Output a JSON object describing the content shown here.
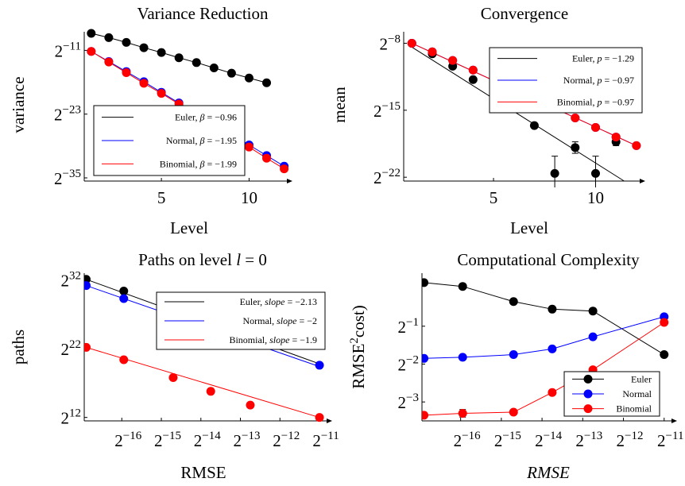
{
  "chart_data": [
    {
      "type": "scatter",
      "title": "Variance Reduction",
      "xlabel": "Level",
      "ylabel": "variance",
      "xlim": [
        0.6,
        12.2
      ],
      "ylim_log2": [
        -35.6,
        -7.5
      ],
      "x_ticks": [
        5,
        10
      ],
      "y_ticks": [
        {
          "exp": -11
        },
        {
          "exp": -23
        },
        {
          "exp": -35
        }
      ],
      "legend_placement": "center-left",
      "series": [
        {
          "name": "Euler, β = −0.96",
          "name_prefix": "Euler, ",
          "sym": "β",
          "name_value": " = −0.96",
          "color": "#000000",
          "x": [
            1,
            2,
            3,
            4,
            5,
            6,
            7,
            8,
            9,
            10,
            11
          ],
          "log2y": [
            -7.8,
            -8.6,
            -9.5,
            -10.5,
            -11.4,
            -12.4,
            -13.3,
            -14.3,
            -15.3,
            -16.2,
            -17.1
          ]
        },
        {
          "name": "Normal, β = −1.95",
          "name_prefix": "Normal, ",
          "sym": "β",
          "name_value": " = −1.95",
          "color": "#0000ff",
          "x": [
            1,
            2,
            3,
            4,
            5,
            6,
            7,
            8,
            9,
            10,
            11,
            12
          ],
          "log2y": [
            -11.2,
            -13.1,
            -15.0,
            -16.9,
            -18.9,
            -20.9,
            -22.8,
            -24.8,
            -26.8,
            -28.8,
            -30.8,
            -32.8
          ]
        },
        {
          "name": "Binomial, β = −1.99",
          "name_prefix": "Binomial, ",
          "sym": "β",
          "name_value": " = −1.99",
          "color": "#ff0000",
          "x": [
            1,
            2,
            3,
            4,
            5,
            6,
            7,
            8,
            9,
            10,
            11,
            12
          ],
          "log2y": [
            -11.2,
            -13.2,
            -15.2,
            -17.2,
            -19.1,
            -21.1,
            -23.2,
            -25.2,
            -27.2,
            -29.2,
            -31.3,
            -33.3
          ]
        }
      ]
    },
    {
      "type": "scatter",
      "title": "Convergence",
      "xlabel": "Level",
      "ylabel": "mean",
      "xlim": [
        0.6,
        12.2
      ],
      "ylim_log2": [
        -22.4,
        -6.8
      ],
      "x_ticks": [
        5,
        10
      ],
      "y_ticks": [
        {
          "exp": -8
        },
        {
          "exp": -15
        },
        {
          "exp": -22
        }
      ],
      "legend_placement": "top-right",
      "series": [
        {
          "name": "Euler, p = −1.29",
          "name_prefix": "Euler, ",
          "sym": "p",
          "name_value": " = −1.29",
          "color": "#000000",
          "x": [
            1,
            2,
            3,
            4,
            5,
            6,
            7,
            8,
            9,
            10,
            11
          ],
          "log2y": [
            -8.0,
            -9.1,
            -10.4,
            -11.8,
            -13.4,
            -14.8,
            -16.6,
            -21.6,
            -18.9,
            -21.6,
            -18.3
          ],
          "errors": [
            null,
            null,
            null,
            null,
            null,
            null,
            null,
            1.8,
            0.6,
            1.8,
            0.4
          ]
        },
        {
          "name": "Normal, p = −0.97",
          "name_prefix": "Normal, ",
          "sym": "p",
          "name_value": " = −0.97",
          "color": "#0000ff",
          "x": [
            1,
            2,
            3,
            4,
            5,
            6,
            7,
            8,
            9,
            10,
            11,
            12
          ],
          "log2y": [
            -8.0,
            -8.9,
            -9.8,
            -10.8,
            -11.8,
            -12.8,
            -13.8,
            -14.8,
            -15.8,
            -16.8,
            -17.8,
            -18.7
          ]
        },
        {
          "name": "Binomial, p = −0.97",
          "name_prefix": "Binomial, ",
          "sym": "p",
          "name_value": " = −0.97",
          "color": "#ff0000",
          "x": [
            1,
            2,
            3,
            4,
            5,
            6,
            7,
            8,
            9,
            10,
            11,
            12
          ],
          "log2y": [
            -8.0,
            -8.9,
            -9.8,
            -10.8,
            -11.8,
            -12.8,
            -13.8,
            -14.8,
            -15.8,
            -16.8,
            -17.8,
            -18.7
          ]
        }
      ],
      "fit_lines": [
        {
          "color": "#000000",
          "x": [
            1,
            11.4
          ],
          "log2y": [
            -8.4,
            -22.4
          ]
        },
        {
          "color": "#0000ff",
          "x": [
            1,
            12
          ],
          "log2y": [
            -8.0,
            -18.7
          ]
        },
        {
          "color": "#ff0000",
          "x": [
            1,
            12
          ],
          "log2y": [
            -8.0,
            -18.7
          ]
        }
      ]
    },
    {
      "type": "scatter",
      "title": "Paths on level l = 0",
      "title_prefix": "Paths on level ",
      "title_sym": "l",
      "title_suffix": " = 0",
      "xlabel": "RMSE",
      "ylabel": "paths",
      "xlim_log2": [
        -16.95,
        -10.8
      ],
      "ylim_log2": [
        11.5,
        33.0
      ],
      "x_ticks": [
        {
          "exp": -16
        },
        {
          "exp": -15
        },
        {
          "exp": -14
        },
        {
          "exp": -13
        },
        {
          "exp": -12
        },
        {
          "exp": -11
        }
      ],
      "y_ticks": [
        {
          "exp": 32
        },
        {
          "exp": 22
        },
        {
          "exp": 12
        }
      ],
      "legend_placement": "top-right",
      "series": [
        {
          "name": "Euler, slope = −2.13",
          "name_prefix": "Euler, ",
          "sym": "slope",
          "name_value": " = −2.13",
          "color": "#000000",
          "log2x": [
            -16.9,
            -15.95
          ],
          "log2y": [
            32.1,
            30.4
          ]
        },
        {
          "name": "Normal, slope = −2",
          "name_prefix": "Normal, ",
          "sym": "slope",
          "name_value": " = −2",
          "color": "#0000ff",
          "log2x": [
            -16.9,
            -15.95,
            -11.0
          ],
          "log2y": [
            31.2,
            29.3,
            19.6
          ]
        },
        {
          "name": "Binomial, slope = −1.9",
          "name_prefix": "Binomial, ",
          "sym": "slope",
          "name_value": " = −1.9",
          "color": "#ff0000",
          "log2x": [
            -16.9,
            -15.95,
            -14.7,
            -13.75,
            -12.75,
            -11.0
          ],
          "log2y": [
            22.2,
            20.4,
            17.8,
            15.8,
            13.8,
            12.0
          ]
        }
      ],
      "fit_lines": [
        {
          "color": "#000000",
          "log2x": [
            -16.9,
            -11.0
          ],
          "log2y": [
            32.1,
            19.8
          ]
        },
        {
          "color": "#0000ff",
          "log2x": [
            -16.9,
            -11.0
          ],
          "log2y": [
            31.2,
            19.4
          ]
        },
        {
          "color": "#ff0000",
          "log2x": [
            -16.9,
            -11.0
          ],
          "log2y": [
            22.2,
            12.0
          ]
        }
      ]
    },
    {
      "type": "line",
      "title": "Computational Complexity",
      "xlabel": "RMSE",
      "ylabel": "RMSE²cost)",
      "ylabel_main": "RMSE",
      "ylabel_sup": "2",
      "ylabel_tail": "cost)",
      "xlim_log2": [
        -16.95,
        -10.8
      ],
      "ylim_log2": [
        -3.5,
        0.4
      ],
      "x_ticks": [
        {
          "exp": -16
        },
        {
          "exp": -15
        },
        {
          "exp": -14
        },
        {
          "exp": -13
        },
        {
          "exp": -12
        },
        {
          "exp": -11
        }
      ],
      "y_ticks": [
        {
          "exp": -1
        },
        {
          "exp": -2
        },
        {
          "exp": -3
        }
      ],
      "legend_placement": "bottom-right",
      "series": [
        {
          "name": "Euler",
          "color": "#000000",
          "log2x": [
            -16.9,
            -15.95,
            -14.7,
            -13.75,
            -12.75,
            -11.0
          ],
          "log2y": [
            0.15,
            0.05,
            -0.35,
            -0.55,
            -0.6,
            -1.75
          ]
        },
        {
          "name": "Normal",
          "color": "#0000ff",
          "log2x": [
            -16.9,
            -15.95,
            -14.7,
            -13.75,
            -12.75,
            -11.0
          ],
          "log2y": [
            -1.85,
            -1.82,
            -1.75,
            -1.6,
            -1.28,
            -0.75
          ]
        },
        {
          "name": "Binomial",
          "color": "#ff0000",
          "log2x": [
            -16.9,
            -15.95,
            -14.7,
            -13.75,
            -12.75,
            -11.0
          ],
          "log2y": [
            -3.35,
            -3.3,
            -3.27,
            -2.75,
            -2.15,
            -0.9
          ],
          "errors": [
            null,
            0.1,
            null,
            null,
            null,
            null
          ]
        }
      ]
    }
  ]
}
